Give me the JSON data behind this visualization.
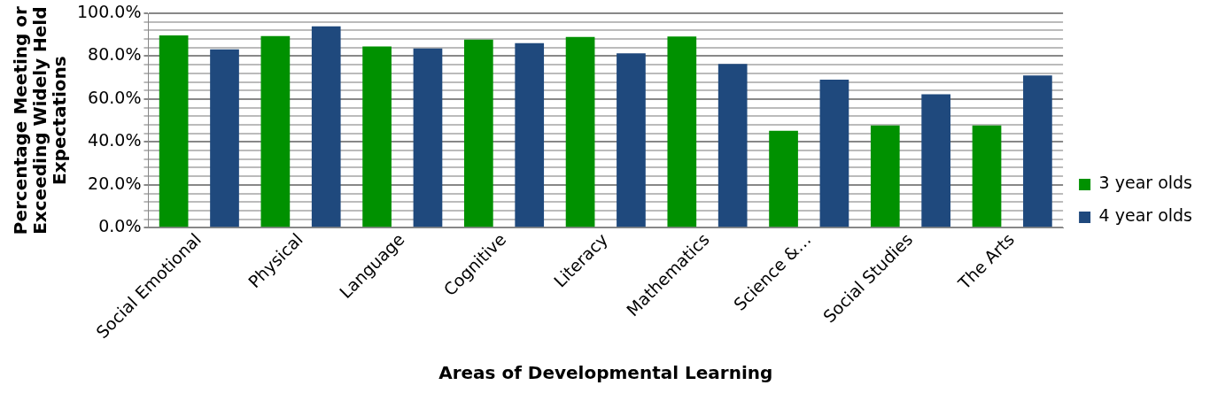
{
  "chart_data": {
    "type": "bar",
    "xlabel": "Areas of Developmental Learning",
    "ylabel": "Percentage Meeting or\nExceeding Widely Held\nExpectations",
    "categories": [
      "Social Emotional",
      "Physical",
      "Language",
      "Cognitive",
      "Literacy",
      "Mathematics",
      "Science &…",
      "Social Studies",
      "The Arts"
    ],
    "series": [
      {
        "name": "3 year olds",
        "color": "#009100",
        "values": [
          89.7,
          89.4,
          84.5,
          87.7,
          89.0,
          89.2,
          45.2,
          47.7,
          47.7
        ]
      },
      {
        "name": "4 year olds",
        "color": "#1f497d",
        "values": [
          83.2,
          93.9,
          83.6,
          86.1,
          81.3,
          76.4,
          69.0,
          62.2,
          71.0
        ]
      }
    ],
    "ylim": [
      0,
      100
    ],
    "yticks": [
      {
        "value": 0,
        "label": "0.0%"
      },
      {
        "value": 4,
        "label": null
      },
      {
        "value": 8,
        "label": null
      },
      {
        "value": 12,
        "label": null
      },
      {
        "value": 16,
        "label": null
      },
      {
        "value": 20,
        "label": "20.0%"
      },
      {
        "value": 24,
        "label": null
      },
      {
        "value": 28,
        "label": null
      },
      {
        "value": 32,
        "label": null
      },
      {
        "value": 36,
        "label": null
      },
      {
        "value": 40,
        "label": "40.0%"
      },
      {
        "value": 44,
        "label": null
      },
      {
        "value": 48,
        "label": null
      },
      {
        "value": 52,
        "label": null
      },
      {
        "value": 56,
        "label": null
      },
      {
        "value": 60,
        "label": "60.0%"
      },
      {
        "value": 64,
        "label": null
      },
      {
        "value": 68,
        "label": null
      },
      {
        "value": 72,
        "label": null
      },
      {
        "value": 76,
        "label": null
      },
      {
        "value": 80,
        "label": "80.0%"
      },
      {
        "value": 84,
        "label": null
      },
      {
        "value": 88,
        "label": null
      },
      {
        "value": 92,
        "label": null
      },
      {
        "value": 96,
        "label": null
      },
      {
        "value": 100,
        "label": "100.0%"
      }
    ],
    "grid": "y",
    "legend": "right"
  }
}
